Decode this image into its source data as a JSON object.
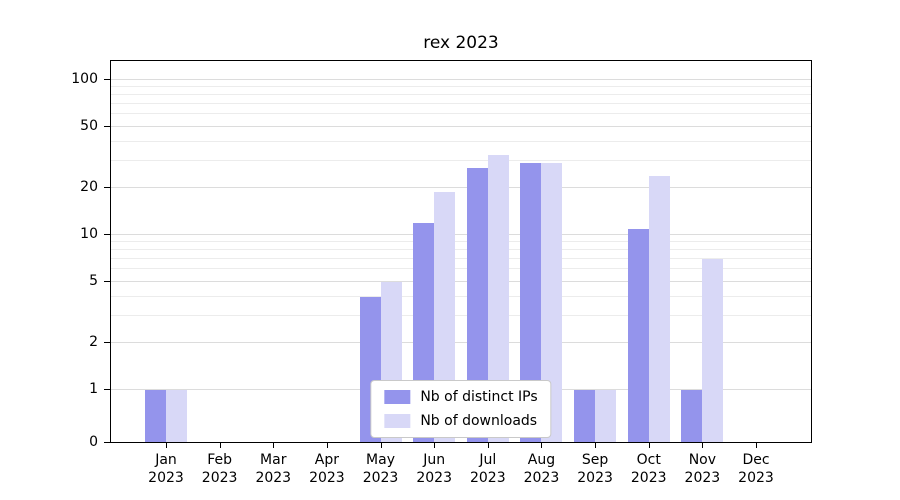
{
  "chart_data": {
    "type": "bar",
    "title": "rex 2023",
    "categories": [
      "Jan 2023",
      "Feb 2023",
      "Mar 2023",
      "Apr 2023",
      "May 2023",
      "Jun 2023",
      "Jul 2023",
      "Aug 2023",
      "Sep 2023",
      "Oct 2023",
      "Nov 2023",
      "Dec 2023"
    ],
    "series": [
      {
        "name": "Nb of distinct IPs",
        "color": "#9494ec",
        "values": [
          1,
          0,
          0,
          0,
          4,
          12,
          27,
          29,
          1,
          11,
          1,
          0
        ]
      },
      {
        "name": "Nb of downloads",
        "color": "#d8d8f7",
        "values": [
          1,
          0,
          0,
          0,
          5,
          19,
          33,
          29,
          1,
          24,
          7,
          0
        ]
      }
    ],
    "yscale": "symlog",
    "y_ticks": [
      0,
      1,
      2,
      5,
      10,
      20,
      50,
      100
    ],
    "ylim": [
      0,
      140
    ],
    "xlabel": "",
    "ylabel": "",
    "grid": true,
    "legend_position": "lower center"
  }
}
